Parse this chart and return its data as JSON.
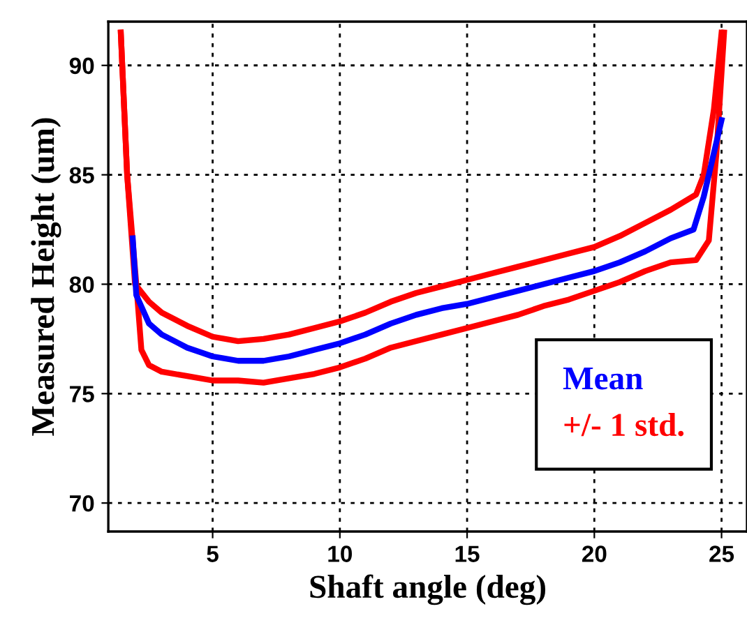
{
  "chart_data": {
    "type": "line",
    "xlabel": "Shaft angle (deg)",
    "ylabel": "Measured Height (um)",
    "xlim": [
      0.9,
      26
    ],
    "ylim": [
      68.7,
      92
    ],
    "xticks": [
      5,
      10,
      15,
      20,
      25
    ],
    "yticks": [
      70,
      75,
      80,
      85,
      90
    ],
    "grid": true,
    "legend": "bottom right",
    "line_style": "solid",
    "marker": "none",
    "series": [
      {
        "name": "Mean",
        "color": "#0000ff",
        "x": [
          1.86,
          2.0,
          2.5,
          3,
          4,
          5,
          6,
          7,
          8,
          9,
          10,
          11,
          12,
          13,
          14,
          15,
          16,
          17,
          18,
          19,
          20,
          21,
          22,
          23,
          23.9,
          24.3,
          24.7,
          25
        ],
        "values": [
          82.1,
          79.5,
          78.2,
          77.7,
          77.1,
          76.7,
          76.5,
          76.5,
          76.7,
          77.0,
          77.3,
          77.7,
          78.2,
          78.6,
          78.9,
          79.1,
          79.4,
          79.7,
          80.0,
          80.3,
          80.6,
          81.0,
          81.5,
          82.1,
          82.5,
          84,
          86,
          87.5
        ]
      },
      {
        "name": "+/- 1 std.",
        "color": "#ff0000",
        "x": [
          1.39,
          1.64,
          1.95,
          2.5,
          3,
          4,
          5,
          6,
          7,
          8,
          9,
          10,
          11,
          12,
          13,
          14,
          15,
          16,
          17,
          18,
          19,
          20,
          21,
          22,
          23,
          24,
          24.3,
          24.7,
          25
        ],
        "values": [
          91.5,
          85,
          80,
          79.2,
          78.7,
          78.1,
          77.6,
          77.4,
          77.5,
          77.7,
          78.0,
          78.3,
          78.7,
          79.2,
          79.6,
          79.9,
          80.2,
          80.5,
          80.8,
          81.1,
          81.4,
          81.7,
          82.2,
          82.8,
          83.4,
          84.1,
          85,
          88,
          91.5
        ]
      },
      {
        "color": "#ff0000",
        "x": [
          1.39,
          1.64,
          2.0,
          2.2,
          2.5,
          3,
          4,
          5,
          6,
          7,
          8,
          9,
          10,
          11,
          12,
          13,
          14,
          15,
          16,
          17,
          18,
          19,
          20,
          21,
          22,
          23,
          24,
          24.5,
          24.8,
          25.1
        ],
        "values": [
          91.5,
          85,
          80,
          77,
          76.3,
          76.0,
          75.8,
          75.6,
          75.6,
          75.5,
          75.7,
          75.9,
          76.2,
          76.6,
          77.1,
          77.4,
          77.7,
          78.0,
          78.3,
          78.6,
          79.0,
          79.3,
          79.7,
          80.1,
          80.6,
          81.0,
          81.1,
          82,
          86,
          91.5
        ]
      }
    ]
  }
}
